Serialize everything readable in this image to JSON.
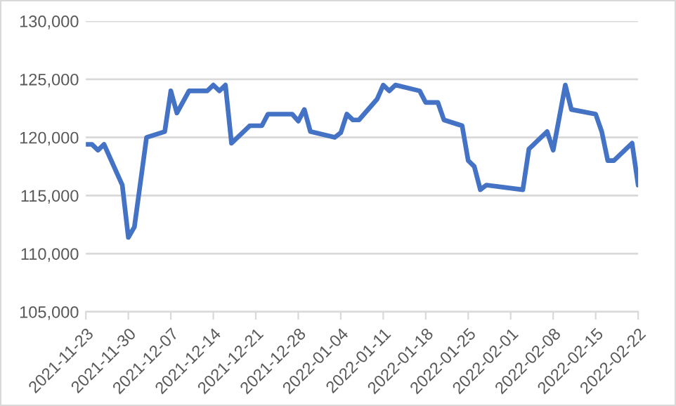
{
  "chart_data": {
    "type": "line",
    "x": [
      "2021-11-23",
      "2021-11-24",
      "2021-11-25",
      "2021-11-26",
      "2021-11-29",
      "2021-11-30",
      "2021-12-01",
      "2021-12-03",
      "2021-12-06",
      "2021-12-07",
      "2021-12-08",
      "2021-12-10",
      "2021-12-13",
      "2021-12-14",
      "2021-12-15",
      "2021-12-16",
      "2021-12-17",
      "2021-12-20",
      "2021-12-22",
      "2021-12-23",
      "2021-12-27",
      "2021-12-28",
      "2021-12-29",
      "2021-12-30",
      "2022-01-03",
      "2022-01-04",
      "2022-01-05",
      "2022-01-06",
      "2022-01-07",
      "2022-01-10",
      "2022-01-11",
      "2022-01-12",
      "2022-01-13",
      "2022-01-17",
      "2022-01-18",
      "2022-01-20",
      "2022-01-21",
      "2022-01-24",
      "2022-01-25",
      "2022-01-26",
      "2022-01-27",
      "2022-01-28",
      "2022-02-03",
      "2022-02-04",
      "2022-02-07",
      "2022-02-08",
      "2022-02-10",
      "2022-02-11",
      "2022-02-15",
      "2022-02-16",
      "2022-02-17",
      "2022-02-18",
      "2022-02-21",
      "2022-02-22"
    ],
    "series": [
      {
        "color": "#4472c4",
        "values": [
          119400,
          119400,
          118900,
          119400,
          115900,
          111400,
          112300,
          120000,
          120500,
          124000,
          122100,
          124000,
          124000,
          124500,
          124000,
          124500,
          119500,
          121000,
          121000,
          122000,
          122000,
          121400,
          122400,
          120500,
          120000,
          120400,
          122000,
          121500,
          121500,
          123300,
          124500,
          124000,
          124500,
          124000,
          123000,
          123000,
          121500,
          121000,
          118000,
          117500,
          115500,
          115900,
          115500,
          119000,
          120500,
          118900,
          124500,
          122400,
          122000,
          120500,
          118000,
          118000,
          119500,
          115900
        ]
      }
    ],
    "xlim": [
      "2021-11-23",
      "2022-02-22"
    ],
    "xticks": [
      {
        "value": "2021-11-23",
        "label": "2021-11-23"
      },
      {
        "value": "2021-11-30",
        "label": "2021-11-30"
      },
      {
        "value": "2021-12-07",
        "label": "2021-12-07"
      },
      {
        "value": "2021-12-14",
        "label": "2021-12-14"
      },
      {
        "value": "2021-12-21",
        "label": "2021-12-21"
      },
      {
        "value": "2021-12-28",
        "label": "2021-12-28"
      },
      {
        "value": "2022-01-04",
        "label": "2022-01-04"
      },
      {
        "value": "2022-01-11",
        "label": "2022-01-11"
      },
      {
        "value": "2022-01-18",
        "label": "2022-01-18"
      },
      {
        "value": "2022-01-25",
        "label": "2022-01-25"
      },
      {
        "value": "2022-02-01",
        "label": "2022-02-01"
      },
      {
        "value": "2022-02-08",
        "label": "2022-02-08"
      },
      {
        "value": "2022-02-15",
        "label": "2022-02-15"
      },
      {
        "value": "2022-02-22",
        "label": "2022-02-22"
      }
    ],
    "ylim": [
      105000,
      130000
    ],
    "yticks": [
      {
        "value": 105000,
        "label": "105,000"
      },
      {
        "value": 110000,
        "label": "110,000"
      },
      {
        "value": 115000,
        "label": "115,000"
      },
      {
        "value": 120000,
        "label": "120,000"
      },
      {
        "value": 125000,
        "label": "125,000"
      },
      {
        "value": 130000,
        "label": "130,000"
      }
    ],
    "grid": "y",
    "marker": "none",
    "line_style": "solid",
    "legend": false
  }
}
